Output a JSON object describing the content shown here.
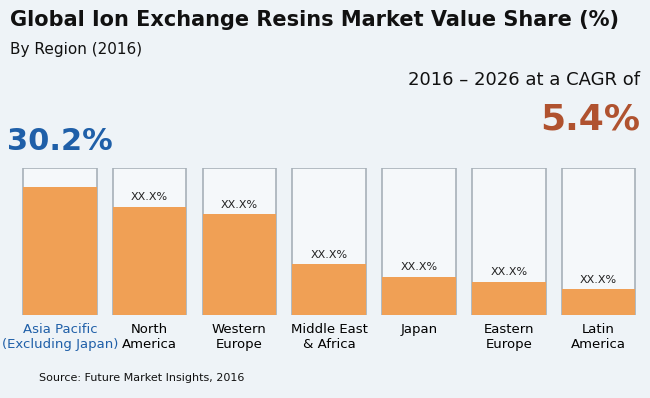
{
  "chart_data": {
    "type": "bar",
    "title": "Global Ion Exchange Resins Market Value Share (%)",
    "subtitle": "By Region (2016)",
    "annotations": [
      "2016 – 2026 at a CAGR of",
      "5.4%"
    ],
    "source": "Source: Future Market Insights, 2016",
    "categories": [
      "Asia Pacific\n(Excluding Japan)",
      "North\nAmerica",
      "Western\nEurope",
      "Middle East\n& Africa",
      "Japan",
      "Eastern\nEurope",
      "Latin\nAmerica"
    ],
    "values": [
      30.2,
      25.5,
      23.8,
      12.0,
      9.0,
      7.8,
      6.1
    ],
    "value_labels": [
      "30.2%",
      "XX.X%",
      "XX.X%",
      "XX.X%",
      "XX.X%",
      "XX.X%",
      "XX.X%"
    ],
    "color": "#f0a055",
    "ylim": [
      0,
      34.7
    ],
    "data_labels": true,
    "tick_labels": "x",
    "grid": false
  }
}
